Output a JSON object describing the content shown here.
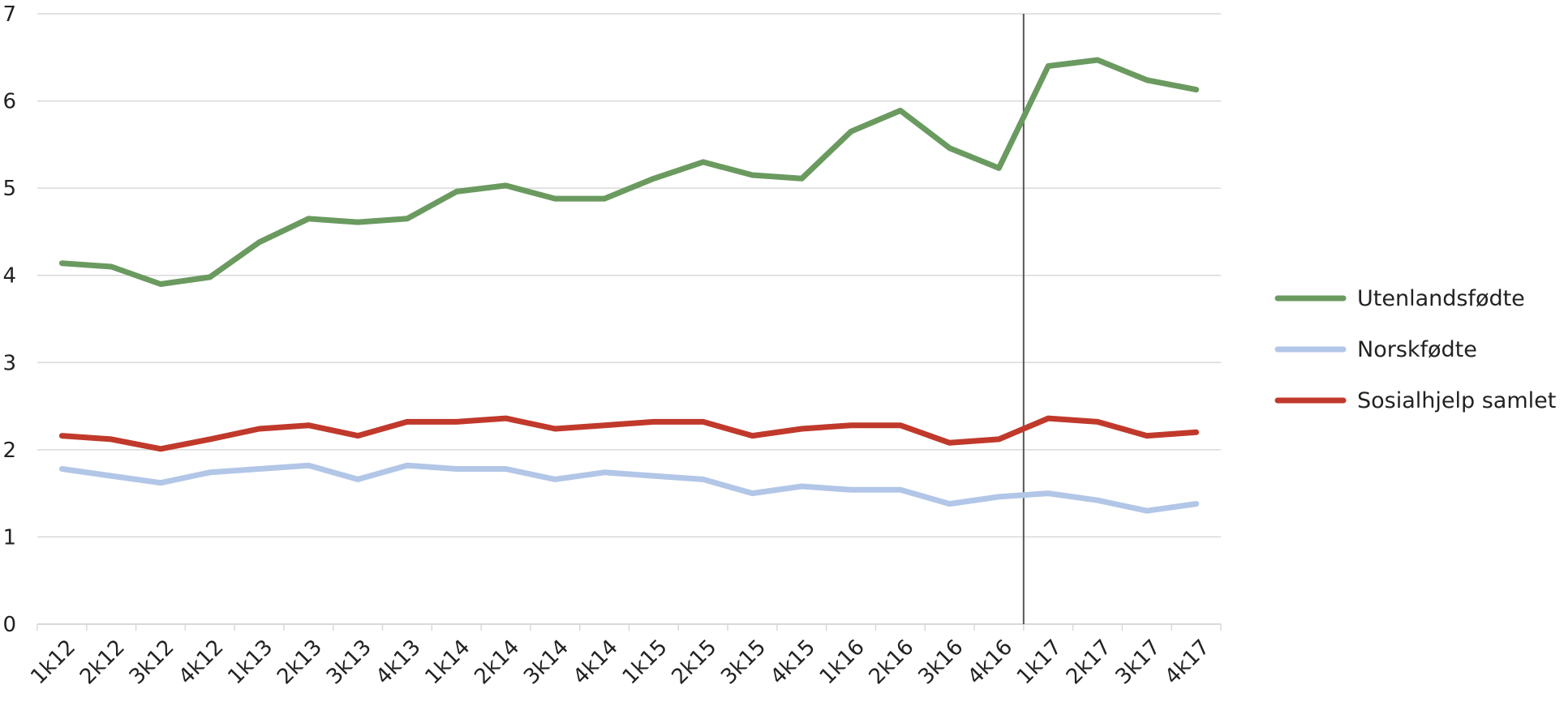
{
  "chart_data": {
    "type": "line",
    "title": "",
    "xlabel": "",
    "ylabel": "",
    "categories": [
      "1k12",
      "2k12",
      "3k12",
      "4k12",
      "1k13",
      "2k13",
      "3k13",
      "4k13",
      "1k14",
      "2k14",
      "3k14",
      "4k14",
      "1k15",
      "2k15",
      "3k15",
      "4k15",
      "1k16",
      "2k16",
      "3k16",
      "4k16",
      "1k17",
      "2k17",
      "3k17",
      "4k17"
    ],
    "yticks": [
      "0",
      "1",
      "2",
      "3",
      "4",
      "5",
      "6",
      "7"
    ],
    "ylim": [
      0,
      7
    ],
    "grid": true,
    "legend_position": "right",
    "marker_after_category": "4k16",
    "series": [
      {
        "name": "Utenlandsfødte",
        "color": "#6a9a5f",
        "values": [
          4.14,
          4.1,
          3.9,
          3.98,
          4.38,
          4.65,
          4.61,
          4.65,
          4.96,
          5.03,
          4.88,
          4.88,
          5.11,
          5.3,
          5.15,
          5.11,
          5.65,
          5.89,
          5.46,
          5.23,
          6.4,
          6.47,
          6.24,
          6.13
        ]
      },
      {
        "name": "Norskfødte",
        "color": "#b2c6e7",
        "values": [
          1.78,
          1.7,
          1.62,
          1.74,
          1.78,
          1.82,
          1.66,
          1.82,
          1.78,
          1.78,
          1.66,
          1.74,
          1.7,
          1.66,
          1.5,
          1.58,
          1.54,
          1.54,
          1.38,
          1.46,
          1.5,
          1.42,
          1.3,
          1.38
        ]
      },
      {
        "name": "Sosialhjelp samlet",
        "color": "#c0392b",
        "values": [
          2.16,
          2.12,
          2.01,
          2.12,
          2.24,
          2.28,
          2.16,
          2.32,
          2.32,
          2.36,
          2.24,
          2.28,
          2.32,
          2.32,
          2.16,
          2.24,
          2.28,
          2.28,
          2.08,
          2.12,
          2.36,
          2.32,
          2.16,
          2.2
        ]
      }
    ]
  }
}
